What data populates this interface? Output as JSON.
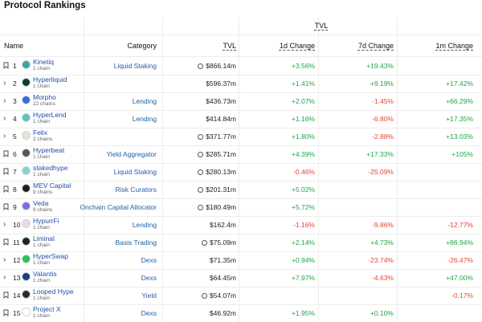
{
  "page": {
    "title": "Protocol Rankings"
  },
  "headers": {
    "tvl_group": "TVL",
    "name": "Name",
    "category": "Category",
    "tvl": "TVL",
    "change_1d": "1d Change",
    "change_7d": "7d Change",
    "change_1m": "1m Change"
  },
  "rows": [
    {
      "expand": "bookmark",
      "rank": "1",
      "name": "Kinetiq",
      "chains": "1 chain",
      "category": "Liquid Staking",
      "tvl": "$866.14m",
      "clock": true,
      "d1": "+3.56%",
      "d7": "+19.43%",
      "m1": "",
      "logo_color": "#3aa4a8"
    },
    {
      "expand": "chevron",
      "rank": "2",
      "name": "Hyperliquid",
      "chains": "1 chain",
      "category": "",
      "tvl": "$596.37m",
      "clock": false,
      "d1": "+1.41%",
      "d7": "+9.19%",
      "m1": "+17.42%",
      "logo_color": "#0f3b35"
    },
    {
      "expand": "chevron",
      "rank": "3",
      "name": "Morpho",
      "chains": "22 chains",
      "category": "Lending",
      "tvl": "$436.73m",
      "clock": false,
      "d1": "+2.07%",
      "d7": "-1.45%",
      "m1": "+66.29%",
      "logo_color": "#2f6fe0"
    },
    {
      "expand": "chevron",
      "rank": "4",
      "name": "HyperLend",
      "chains": "1 chain",
      "category": "Lending",
      "tvl": "$414.84m",
      "clock": false,
      "d1": "+1.16%",
      "d7": "-6.80%",
      "m1": "+17.35%",
      "logo_color": "#58c7c0"
    },
    {
      "expand": "chevron",
      "rank": "5",
      "name": "Felix",
      "chains": "2 chains",
      "category": "",
      "tvl": "$371.77m",
      "clock": true,
      "d1": "+1.80%",
      "d7": "-2.88%",
      "m1": "+13.03%",
      "logo_color": "#e9e3d6"
    },
    {
      "expand": "bookmark",
      "rank": "6",
      "name": "Hyperbeat",
      "chains": "1 chain",
      "category": "Yield Aggregator",
      "tvl": "$285.71m",
      "clock": true,
      "d1": "+4.39%",
      "d7": "+17.33%",
      "m1": "+105%",
      "logo_color": "#555555"
    },
    {
      "expand": "bookmark",
      "rank": "7",
      "name": "stakedhype",
      "chains": "1 chain",
      "category": "Liquid Staking",
      "tvl": "$280.13m",
      "clock": true,
      "d1": "-0.46%",
      "d7": "-25.09%",
      "m1": "",
      "logo_color": "#7ad6d0"
    },
    {
      "expand": "bookmark",
      "rank": "8",
      "name": "MEV Capital",
      "chains": "9 chains",
      "category": "Risk Curators",
      "tvl": "$201.31m",
      "clock": true,
      "d1": "+5.02%",
      "d7": "",
      "m1": "",
      "logo_color": "#1d1d2b"
    },
    {
      "expand": "bookmark",
      "rank": "9",
      "name": "Veda",
      "chains": "9 chains",
      "category": "Onchain Capital Allocator",
      "tvl": "$180.49m",
      "clock": true,
      "d1": "+5.72%",
      "d7": "",
      "m1": "",
      "logo_color": "#7d6cf0"
    },
    {
      "expand": "chevron",
      "rank": "10",
      "name": "HypurrFi",
      "chains": "1 chain",
      "category": "Lending",
      "tvl": "$162.4m",
      "clock": false,
      "d1": "-1.16%",
      "d7": "-9.86%",
      "m1": "-12.77%",
      "logo_color": "#f2d7e8"
    },
    {
      "expand": "bookmark",
      "rank": "11",
      "name": "Liminal",
      "chains": "1 chain",
      "category": "Basis Trading",
      "tvl": "$75.09m",
      "clock": true,
      "d1": "+2.14%",
      "d7": "+4.73%",
      "m1": "+86.94%",
      "logo_color": "#222222"
    },
    {
      "expand": "chevron",
      "rank": "12",
      "name": "HyperSwap",
      "chains": "1 chain",
      "category": "Dexs",
      "tvl": "$71.35m",
      "clock": false,
      "d1": "+0.94%",
      "d7": "-23.74%",
      "m1": "-26.47%",
      "logo_color": "#2fbf5a"
    },
    {
      "expand": "chevron",
      "rank": "13",
      "name": "Valantis",
      "chains": "1 chain",
      "category": "Dexs",
      "tvl": "$64.45m",
      "clock": false,
      "d1": "+7.97%",
      "d7": "-4.63%",
      "m1": "+47.00%",
      "logo_color": "#1b3f7a"
    },
    {
      "expand": "bookmark",
      "rank": "14",
      "name": "Looped Hype",
      "chains": "1 chain",
      "category": "Yield",
      "tvl": "$54.07m",
      "clock": true,
      "d1": "",
      "d7": "",
      "m1": "-0.17%",
      "logo_color": "#2a2a2a"
    },
    {
      "expand": "bookmark",
      "rank": "15",
      "name": "Project X",
      "chains": "1 chain",
      "category": "Dexs",
      "tvl": "$46.92m",
      "clock": false,
      "d1": "+1.95%",
      "d7": "+0.10%",
      "m1": "",
      "logo_color": "#ffffff"
    }
  ]
}
